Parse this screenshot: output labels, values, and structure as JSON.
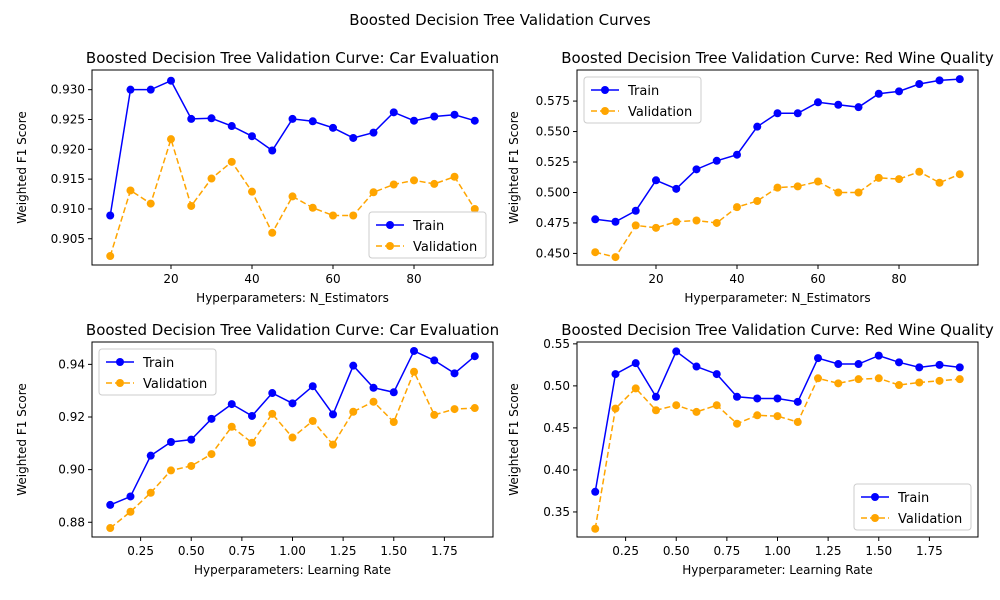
{
  "figure": {
    "suptitle": "Boosted Decision Tree Validation Curves"
  },
  "colors": {
    "train": "#0000ff",
    "validation": "#ffa500"
  },
  "chart_data": [
    {
      "type": "line",
      "title": "Boosted Decision Tree Validation Curve: Car Evaluation",
      "xlabel": "Hyperparameters: N_Estimators",
      "ylabel": "Weighted F1 Score",
      "xlim": [
        0.5,
        99.5
      ],
      "ylim": [
        0.9006,
        0.9333
      ],
      "xticks": [
        20,
        40,
        60,
        80
      ],
      "xtick_labels": [
        "20",
        "40",
        "60",
        "80"
      ],
      "yticks": [
        0.905,
        0.91,
        0.915,
        0.92,
        0.925,
        0.93
      ],
      "ytick_labels": [
        "0.905",
        "0.910",
        "0.915",
        "0.920",
        "0.925",
        "0.930"
      ],
      "legend": "lower-right",
      "x": [
        5,
        10,
        15,
        20,
        25,
        30,
        35,
        40,
        45,
        50,
        55,
        60,
        65,
        70,
        75,
        80,
        85,
        90,
        95
      ],
      "series": [
        {
          "name": "Train",
          "style": "solid",
          "values": [
            0.9089,
            0.93,
            0.93,
            0.9315,
            0.9251,
            0.9252,
            0.9239,
            0.9222,
            0.9198,
            0.9251,
            0.9247,
            0.9236,
            0.9219,
            0.9228,
            0.9262,
            0.9248,
            0.9255,
            0.9258,
            0.9248
          ]
        },
        {
          "name": "Validation",
          "style": "dashed",
          "values": [
            0.9021,
            0.9131,
            0.9109,
            0.9217,
            0.9105,
            0.9151,
            0.9179,
            0.9129,
            0.906,
            0.9121,
            0.9102,
            0.9089,
            0.9089,
            0.9128,
            0.9141,
            0.9148,
            0.9142,
            0.9154,
            0.91
          ]
        }
      ]
    },
    {
      "type": "line",
      "title": "Boosted Decision Tree Validation Curve: Red Wine Quality",
      "xlabel": "Hyperparameter: N_Estimators",
      "ylabel": "Weighted F1 Score",
      "xlim": [
        0.5,
        99.5
      ],
      "ylim": [
        0.4405,
        0.6005
      ],
      "xticks": [
        20,
        40,
        60,
        80
      ],
      "xtick_labels": [
        "20",
        "40",
        "60",
        "80"
      ],
      "yticks": [
        0.45,
        0.475,
        0.5,
        0.525,
        0.55,
        0.575
      ],
      "ytick_labels": [
        "0.450",
        "0.475",
        "0.500",
        "0.525",
        "0.550",
        "0.575"
      ],
      "legend": "upper-left",
      "x": [
        5,
        10,
        15,
        20,
        25,
        30,
        35,
        40,
        45,
        50,
        55,
        60,
        65,
        70,
        75,
        80,
        85,
        90,
        95
      ],
      "series": [
        {
          "name": "Train",
          "style": "solid",
          "values": [
            0.478,
            0.476,
            0.485,
            0.51,
            0.503,
            0.519,
            0.526,
            0.531,
            0.554,
            0.565,
            0.565,
            0.574,
            0.572,
            0.57,
            0.581,
            0.583,
            0.589,
            0.592,
            0.593
          ]
        },
        {
          "name": "Validation",
          "style": "dashed",
          "values": [
            0.451,
            0.447,
            0.473,
            0.471,
            0.476,
            0.477,
            0.475,
            0.488,
            0.493,
            0.504,
            0.505,
            0.509,
            0.5,
            0.5,
            0.512,
            0.511,
            0.517,
            0.508,
            0.515
          ]
        }
      ]
    },
    {
      "type": "line",
      "title": "Boosted Decision Tree Validation Curve: Car Evaluation",
      "xlabel": "Hyperparameters: Learning Rate",
      "ylabel": "Weighted F1 Score",
      "xlim": [
        0.01,
        1.99
      ],
      "ylim": [
        0.8744,
        0.9485
      ],
      "xticks": [
        0.25,
        0.5,
        0.75,
        1.0,
        1.25,
        1.5,
        1.75
      ],
      "xtick_labels": [
        "0.25",
        "0.50",
        "0.75",
        "1.00",
        "1.25",
        "1.50",
        "1.75"
      ],
      "yticks": [
        0.88,
        0.9,
        0.92,
        0.94
      ],
      "ytick_labels": [
        "0.88",
        "0.90",
        "0.92",
        "0.94"
      ],
      "legend": "upper-left",
      "x": [
        0.1,
        0.2,
        0.3,
        0.4,
        0.5,
        0.6,
        0.7,
        0.8,
        0.9,
        1.0,
        1.1,
        1.2,
        1.3,
        1.4,
        1.5,
        1.6,
        1.7,
        1.8,
        1.9
      ],
      "series": [
        {
          "name": "Train",
          "style": "solid",
          "values": [
            0.8866,
            0.8898,
            0.9053,
            0.9105,
            0.9114,
            0.9193,
            0.9249,
            0.9204,
            0.9291,
            0.9252,
            0.9317,
            0.921,
            0.9395,
            0.9311,
            0.9294,
            0.9451,
            0.9415,
            0.9366,
            0.9431
          ]
        },
        {
          "name": "Validation",
          "style": "dashed",
          "values": [
            0.8778,
            0.884,
            0.8912,
            0.8997,
            0.9014,
            0.9059,
            0.9163,
            0.9102,
            0.9212,
            0.9122,
            0.9185,
            0.9095,
            0.922,
            0.9258,
            0.9181,
            0.9372,
            0.9208,
            0.923,
            0.9234
          ]
        }
      ]
    },
    {
      "type": "line",
      "title": "Boosted Decision Tree Validation Curve: Red Wine Quality",
      "xlabel": "Hyperparameter: Learning Rate",
      "ylabel": "Weighted F1 Score",
      "xlim": [
        0.01,
        1.99
      ],
      "ylim": [
        0.3202,
        0.5522
      ],
      "xticks": [
        0.25,
        0.5,
        0.75,
        1.0,
        1.25,
        1.5,
        1.75
      ],
      "xtick_labels": [
        "0.25",
        "0.50",
        "0.75",
        "1.00",
        "1.25",
        "1.50",
        "1.75"
      ],
      "yticks": [
        0.35,
        0.4,
        0.45,
        0.5,
        0.55
      ],
      "ytick_labels": [
        "0.35",
        "0.40",
        "0.45",
        "0.50",
        "0.55"
      ],
      "legend": "lower-right",
      "x": [
        0.1,
        0.2,
        0.3,
        0.4,
        0.5,
        0.6,
        0.7,
        0.8,
        0.9,
        1.0,
        1.1,
        1.2,
        1.3,
        1.4,
        1.5,
        1.6,
        1.7,
        1.8,
        1.9
      ],
      "series": [
        {
          "name": "Train",
          "style": "solid",
          "values": [
            0.374,
            0.514,
            0.527,
            0.487,
            0.541,
            0.523,
            0.514,
            0.487,
            0.485,
            0.485,
            0.481,
            0.533,
            0.526,
            0.526,
            0.536,
            0.528,
            0.522,
            0.525,
            0.522
          ]
        },
        {
          "name": "Validation",
          "style": "dashed",
          "values": [
            0.33,
            0.473,
            0.497,
            0.471,
            0.477,
            0.469,
            0.477,
            0.455,
            0.465,
            0.464,
            0.457,
            0.509,
            0.503,
            0.508,
            0.509,
            0.501,
            0.504,
            0.506,
            0.508
          ]
        }
      ]
    }
  ]
}
